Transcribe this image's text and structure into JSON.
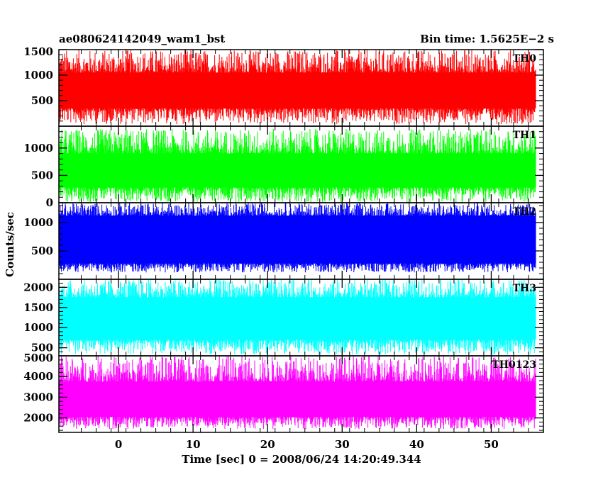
{
  "header": {
    "left_title": "ae080624142049_wam1_bst",
    "right_title": "Bin time: 1.5625E−2 s"
  },
  "chart_data": {
    "type": "line",
    "xlabel": "Time [sec] 0 = 2008/06/24 14:20:49.344",
    "ylabel": "Counts/sec",
    "xlim": [
      -8,
      57
    ],
    "x_ticks": [
      0,
      10,
      20,
      30,
      40,
      50
    ],
    "x_tick_labels": [
      "0",
      "10",
      "20",
      "30",
      "40",
      "50"
    ],
    "data_x_range": [
      -8,
      56
    ],
    "bin_time": 0.015625,
    "panels": [
      {
        "name": "TH0",
        "color": "#ff0000",
        "ylim": [
          0,
          1500
        ],
        "yticks": [
          500,
          1000,
          1500
        ],
        "ytick_labels": [
          "500",
          "1000",
          "1500"
        ],
        "baseline": 700,
        "band_low": 350,
        "band_high": 1050,
        "peak_max": 1500,
        "trough_min": 40
      },
      {
        "name": "TH1",
        "color": "#00ff00",
        "ylim": [
          0,
          1400
        ],
        "yticks": [
          0,
          500,
          1000
        ],
        "ytick_labels": [
          "0",
          "500",
          "1000"
        ],
        "baseline": 580,
        "band_low": 280,
        "band_high": 900,
        "peak_max": 1350,
        "trough_min": 10
      },
      {
        "name": "TH2",
        "color": "#0000ff",
        "ylim": [
          0,
          1350
        ],
        "yticks": [
          500,
          1000
        ],
        "ytick_labels": [
          "500",
          "1000"
        ],
        "baseline": 680,
        "band_low": 280,
        "band_high": 1120,
        "peak_max": 1350,
        "trough_min": 120
      },
      {
        "name": "TH3",
        "color": "#00ffff",
        "ylim": [
          300,
          2200
        ],
        "yticks": [
          500,
          1000,
          1500,
          2000
        ],
        "ytick_labels": [
          "500",
          "1000",
          "1500",
          "2000"
        ],
        "baseline": 1200,
        "band_low": 700,
        "band_high": 1750,
        "peak_max": 2200,
        "trough_min": 330
      },
      {
        "name": "TH0123",
        "color": "#ff00ff",
        "ylim": [
          1300,
          5000
        ],
        "yticks": [
          2000,
          3000,
          4000,
          5000
        ],
        "ytick_labels": [
          "2000",
          "3000",
          "4000",
          "5000"
        ],
        "baseline": 2900,
        "band_low": 2050,
        "band_high": 3750,
        "peak_max": 5000,
        "trough_min": 1450
      }
    ]
  }
}
